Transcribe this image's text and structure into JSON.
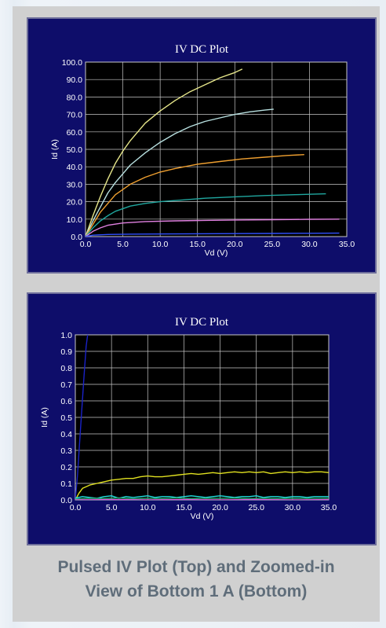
{
  "chart_data": [
    {
      "type": "line",
      "title": "IV DC Plot",
      "xlabel": "Vd (V)",
      "ylabel": "Id (A)",
      "xlim": [
        0,
        35
      ],
      "ylim": [
        0,
        100
      ],
      "xticks": [
        "0.0",
        "5.0",
        "10.0",
        "15.0",
        "20.0",
        "25.0",
        "30.0",
        "35.0"
      ],
      "yticks": [
        "0.0",
        "10.0",
        "20.0",
        "30.0",
        "40.0",
        "50.0",
        "60.0",
        "70.0",
        "80.0",
        "90.0",
        "100.0"
      ],
      "grid": true,
      "series": [
        {
          "color": "#e6e68a",
          "x": [
            0,
            1,
            2,
            3,
            4,
            5,
            6,
            8,
            10,
            12,
            14,
            16,
            18,
            20,
            21
          ],
          "y": [
            0,
            12,
            23,
            33,
            42,
            49,
            55,
            65,
            72,
            78,
            83,
            87,
            91,
            94,
            96
          ]
        },
        {
          "color": "#b8e0e0",
          "x": [
            0,
            1,
            2,
            3,
            4,
            6,
            8,
            10,
            12,
            14,
            16,
            18,
            20,
            22,
            24,
            25.2
          ],
          "y": [
            0,
            9,
            17,
            25,
            31,
            41,
            48,
            54,
            59,
            63,
            66,
            68,
            70,
            71.5,
            72.5,
            73
          ]
        },
        {
          "color": "#f0a030",
          "x": [
            0,
            1,
            2,
            3,
            4,
            6,
            8,
            10,
            12,
            15,
            18,
            21,
            24,
            27,
            29.3
          ],
          "y": [
            0,
            7,
            14,
            19,
            24,
            30,
            34,
            37,
            39,
            41.5,
            43,
            44.5,
            45.5,
            46.5,
            47
          ]
        },
        {
          "color": "#20a8a0",
          "x": [
            0,
            1,
            2,
            3,
            4,
            6,
            8,
            10,
            13,
            16,
            20,
            24,
            28,
            32.2
          ],
          "y": [
            0,
            5,
            9,
            12,
            14.5,
            17.5,
            19,
            20,
            21,
            22,
            22.8,
            23.5,
            24,
            24.5
          ]
        },
        {
          "color": "#e080e0",
          "x": [
            0,
            1,
            2,
            3,
            5,
            8,
            12,
            16,
            20,
            25,
            30,
            34
          ],
          "y": [
            0,
            3,
            5,
            6.5,
            7.8,
            8.6,
            9,
            9.3,
            9.5,
            9.7,
            9.9,
            10
          ]
        },
        {
          "color": "#3050ff",
          "x": [
            0,
            1,
            3,
            6,
            10,
            15,
            20,
            25,
            30,
            34
          ],
          "y": [
            0,
            0.8,
            1.2,
            1.4,
            1.5,
            1.6,
            1.7,
            1.8,
            1.9,
            2
          ]
        }
      ]
    },
    {
      "type": "line",
      "title": "IV DC Plot",
      "xlabel": "Vd (V)",
      "ylabel": "Id (A)",
      "xlim": [
        0,
        35
      ],
      "ylim": [
        0,
        1.0
      ],
      "xticks": [
        "0.0",
        "5.0",
        "10.0",
        "15.0",
        "20.0",
        "25.0",
        "30.0",
        "35.0"
      ],
      "yticks": [
        "0.0",
        "0.1",
        "0.2",
        "0.3",
        "0.4",
        "0.5",
        "0.6",
        "0.7",
        "0.8",
        "0.9",
        "1.0"
      ],
      "grid": true,
      "series": [
        {
          "color": "#1a22c8",
          "x": [
            0,
            0.3,
            0.6,
            0.9,
            1.2,
            1.5,
            1.7
          ],
          "y": [
            0,
            0.15,
            0.35,
            0.55,
            0.75,
            0.93,
            1.0
          ]
        },
        {
          "color": "#e0e020",
          "x": [
            0,
            0.5,
            1,
            1.5,
            2,
            3,
            4,
            5,
            6,
            7,
            8,
            9,
            10,
            11,
            12,
            13,
            14,
            15,
            16,
            17,
            18,
            19,
            20,
            21,
            22,
            23,
            24,
            25,
            26,
            27,
            28,
            29,
            30,
            31,
            32,
            33,
            34,
            35
          ],
          "y": [
            0,
            0.04,
            0.07,
            0.08,
            0.09,
            0.1,
            0.11,
            0.12,
            0.125,
            0.13,
            0.13,
            0.14,
            0.145,
            0.14,
            0.14,
            0.145,
            0.15,
            0.155,
            0.16,
            0.155,
            0.16,
            0.165,
            0.16,
            0.165,
            0.17,
            0.165,
            0.17,
            0.165,
            0.17,
            0.16,
            0.165,
            0.17,
            0.165,
            0.17,
            0.165,
            0.17,
            0.17,
            0.165
          ]
        },
        {
          "color": "#20e0e0",
          "x": [
            0,
            1,
            2,
            3,
            4,
            5,
            6,
            7,
            8,
            9,
            10,
            11,
            12,
            13,
            14,
            15,
            16,
            17,
            18,
            19,
            20,
            21,
            22,
            23,
            24,
            25,
            26,
            27,
            28,
            29,
            30,
            31,
            32,
            33,
            34,
            35
          ],
          "y": [
            0.01,
            0.02,
            0.015,
            0.01,
            0.02,
            0.025,
            0.01,
            0.02,
            0.015,
            0.02,
            0.025,
            0.015,
            0.02,
            0.02,
            0.015,
            0.02,
            0.025,
            0.02,
            0.015,
            0.02,
            0.025,
            0.02,
            0.015,
            0.02,
            0.02,
            0.025,
            0.015,
            0.02,
            0.02,
            0.015,
            0.02,
            0.02,
            0.015,
            0.02,
            0.02,
            0.02
          ]
        },
        {
          "color": "#2aa070",
          "x": [
            0,
            2,
            4,
            6,
            8,
            10,
            12,
            14,
            16,
            18,
            20,
            22,
            24,
            26,
            28,
            30,
            32,
            34,
            35
          ],
          "y": [
            0.005,
            0.01,
            0.008,
            0.012,
            0.006,
            0.01,
            0.008,
            0.012,
            0.007,
            0.01,
            0.009,
            0.011,
            0.007,
            0.01,
            0.008,
            0.01,
            0.009,
            0.01,
            0.01
          ]
        },
        {
          "color": "#c06020",
          "x": [
            0,
            1,
            2,
            3,
            4,
            5,
            6,
            7,
            8,
            9,
            10,
            11,
            12,
            13,
            14,
            15,
            16,
            17,
            18,
            19,
            20,
            21,
            22,
            23,
            24,
            25,
            26,
            27,
            28,
            29,
            30,
            31,
            32,
            33,
            34,
            35
          ],
          "y": [
            -0.005,
            0.0,
            -0.01,
            0.0,
            -0.005,
            0.0,
            -0.01,
            0.0,
            -0.005,
            -0.01,
            0.0,
            -0.005,
            0.0,
            -0.01,
            0.0,
            -0.005,
            0.0,
            -0.01,
            0.0,
            -0.005,
            0.0,
            -0.01,
            0.0,
            -0.005,
            0.0,
            -0.01,
            0.0,
            -0.005,
            0.0,
            -0.01,
            0.0,
            -0.005,
            0.0,
            -0.01,
            0.0,
            -0.005
          ]
        },
        {
          "color": "#e050e0",
          "x": [
            0,
            5,
            10,
            15,
            20,
            25,
            30,
            35
          ],
          "y": [
            0.0,
            0.002,
            0.0,
            0.002,
            0.0,
            0.002,
            0.0,
            0.002
          ]
        }
      ]
    }
  ],
  "caption": {
    "line1": "Pulsed IV Plot (Top) and Zoomed-in",
    "line2": "View of Bottom 1 A (Bottom)"
  }
}
